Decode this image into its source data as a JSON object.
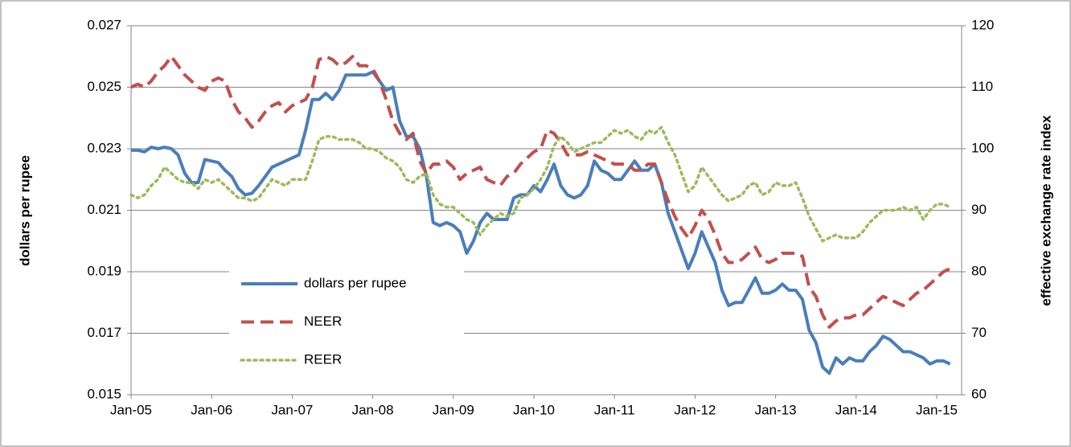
{
  "chart_data": {
    "type": "line",
    "ylabel": "dollars per rupee",
    "y2label": "effective exchange rate index",
    "categories": [
      "Jan-05",
      null,
      null,
      null,
      null,
      null,
      null,
      null,
      null,
      null,
      null,
      null,
      "Jan-06",
      null,
      null,
      null,
      null,
      null,
      null,
      null,
      null,
      null,
      null,
      null,
      "Jan-07",
      null,
      null,
      null,
      null,
      null,
      null,
      null,
      null,
      null,
      null,
      null,
      "Jan-08",
      null,
      null,
      null,
      null,
      null,
      null,
      null,
      null,
      null,
      null,
      null,
      "Jan-09",
      null,
      null,
      null,
      null,
      null,
      null,
      null,
      null,
      null,
      null,
      null,
      "Jan-10",
      null,
      null,
      null,
      null,
      null,
      null,
      null,
      null,
      null,
      null,
      null,
      "Jan-11",
      null,
      null,
      null,
      null,
      null,
      null,
      null,
      null,
      null,
      null,
      null,
      "Jan-12",
      null,
      null,
      null,
      null,
      null,
      null,
      null,
      null,
      null,
      null,
      null,
      "Jan-13",
      null,
      null,
      null,
      null,
      null,
      null,
      null,
      null,
      null,
      null,
      null,
      "Jan-14",
      null,
      null,
      null,
      null,
      null,
      null,
      null,
      null,
      null,
      null,
      null,
      "Jan-15",
      null,
      null
    ],
    "series": [
      {
        "name": "dollars per rupee",
        "color": "#4a7ebb",
        "dash": "none",
        "axis": "y",
        "values": [
          0.02295,
          0.02295,
          0.0229,
          0.02305,
          0.023,
          0.02305,
          0.023,
          0.0228,
          0.0222,
          0.0219,
          0.0219,
          0.02265,
          0.0226,
          0.02255,
          0.0223,
          0.0221,
          0.0217,
          0.0215,
          0.02155,
          0.0218,
          0.0221,
          0.0224,
          0.0225,
          0.0226,
          0.0227,
          0.0228,
          0.0236,
          0.0246,
          0.0246,
          0.0248,
          0.0246,
          0.0249,
          0.0254,
          0.0254,
          0.0254,
          0.0254,
          0.0255,
          0.0252,
          0.0249,
          0.025,
          0.0239,
          0.0234,
          0.0234,
          0.023,
          0.0221,
          0.0206,
          0.0205,
          0.0206,
          0.0205,
          0.0203,
          0.0196,
          0.02,
          0.0206,
          0.0209,
          0.0207,
          0.0207,
          0.0207,
          0.0214,
          0.0215,
          0.0215,
          0.0218,
          0.0216,
          0.022,
          0.0225,
          0.0218,
          0.0215,
          0.0214,
          0.0215,
          0.0218,
          0.0226,
          0.0223,
          0.0222,
          0.022,
          0.022,
          0.0223,
          0.0226,
          0.0223,
          0.0223,
          0.0225,
          0.0219,
          0.0209,
          0.0203,
          0.0197,
          0.0191,
          0.0196,
          0.0203,
          0.0198,
          0.0193,
          0.0184,
          0.0179,
          0.018,
          0.018,
          0.0184,
          0.0188,
          0.0183,
          0.0183,
          0.0184,
          0.0186,
          0.0184,
          0.0184,
          0.0181,
          0.0171,
          0.0167,
          0.0159,
          0.0157,
          0.0162,
          0.016,
          0.0162,
          0.0161,
          0.0161,
          0.0164,
          0.0166,
          0.0169,
          0.0168,
          0.0166,
          0.0164,
          0.0164,
          0.0163,
          0.0162,
          0.016,
          0.0161,
          0.0161,
          0.016
        ]
      },
      {
        "name": "NEER",
        "color": "#c0504d",
        "dash": "dashed",
        "axis": "y2",
        "values": [
          110,
          110.5,
          110,
          111,
          112.5,
          113.5,
          115,
          113.5,
          112,
          111,
          110,
          109.5,
          111,
          111.5,
          111,
          108,
          106,
          105,
          103.5,
          104.5,
          106,
          107,
          107.5,
          106,
          107,
          107.5,
          108,
          110,
          114.5,
          115,
          114.5,
          113.5,
          114,
          115,
          113.5,
          113.5,
          113,
          111,
          108,
          104.5,
          102.5,
          101.5,
          102.5,
          98,
          96,
          97.5,
          97.5,
          98,
          97,
          95,
          96,
          96.5,
          97,
          95,
          94.5,
          94,
          95.5,
          96,
          97.5,
          98.5,
          99.5,
          100,
          103,
          102.5,
          101,
          99,
          99,
          99,
          99.5,
          99,
          98.5,
          98,
          97.5,
          97.5,
          97.5,
          96.5,
          96.5,
          97.5,
          97.5,
          94.5,
          91.5,
          89,
          87,
          85.5,
          87.5,
          90,
          88.5,
          86,
          83,
          81.5,
          81.5,
          82,
          83,
          84,
          82,
          81.5,
          82,
          83,
          83,
          83,
          82.5,
          77.5,
          76,
          73,
          71,
          72,
          72.5,
          72.5,
          73,
          73,
          74,
          75,
          76,
          75.5,
          75,
          74.5,
          75.5,
          76.5,
          77,
          78,
          79,
          80,
          80.5
        ]
      },
      {
        "name": "REER",
        "color": "#9bbb59",
        "dash": "dotted",
        "axis": "y2",
        "values": [
          92.5,
          92,
          92.5,
          94,
          95,
          97,
          96,
          95,
          94.5,
          94.5,
          93.5,
          95,
          94.5,
          95,
          94,
          93,
          92,
          92,
          91.5,
          92,
          93.5,
          95,
          94.5,
          94,
          95,
          95,
          95,
          98,
          101.5,
          102,
          102,
          101.5,
          101.5,
          101.5,
          101,
          100,
          100,
          99.5,
          98.5,
          98,
          97,
          95,
          94.5,
          95.5,
          96,
          92.5,
          91,
          90.5,
          90.5,
          89.5,
          88.5,
          88,
          86,
          87.5,
          88.5,
          89.5,
          89,
          89.5,
          92,
          92.5,
          93.5,
          95,
          97,
          100.5,
          102,
          101,
          99.5,
          100,
          100.5,
          101,
          101,
          102,
          103,
          102.5,
          103,
          102,
          101.5,
          103,
          102.5,
          103.5,
          101,
          99,
          96,
          93,
          94,
          97,
          95.5,
          94,
          92.5,
          91.5,
          92,
          92.5,
          94,
          94.5,
          92.5,
          93,
          94.5,
          94,
          94,
          94.5,
          92,
          89,
          87,
          85,
          85.5,
          86,
          85.5,
          85.5,
          85.5,
          86.5,
          88,
          89,
          90,
          90,
          90,
          90.5,
          90,
          90.5,
          88.5,
          90,
          91,
          91,
          90.5
        ]
      }
    ],
    "ylim": [
      0.015,
      0.027
    ],
    "yticks": [
      0.015,
      0.017,
      0.019,
      0.021,
      0.023,
      0.025,
      0.027
    ],
    "y2lim": [
      60,
      120
    ],
    "y2ticks": [
      60,
      70,
      80,
      90,
      100,
      110,
      120
    ],
    "grid": true,
    "legend": "lower left"
  }
}
